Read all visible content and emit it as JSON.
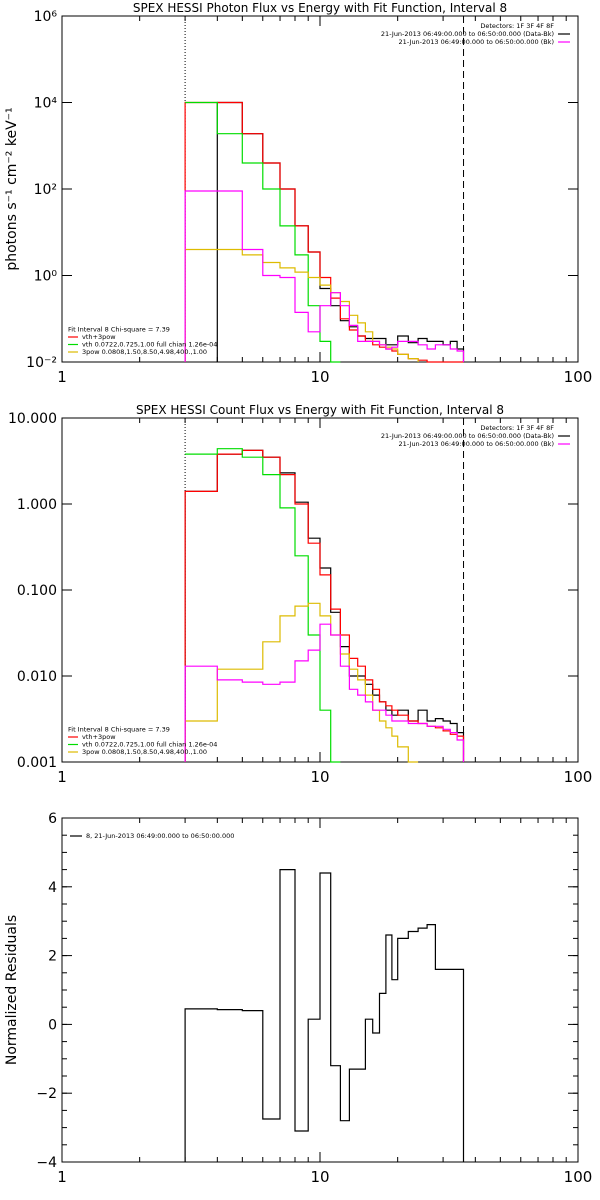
{
  "figure_title_note": "",
  "chart_data": [
    {
      "type": "line",
      "title": "SPEX HESSI Photon Flux vs Energy with Fit Function, Interval 8",
      "ylabel": "photons s⁻¹ cm⁻² keV⁻¹",
      "xlabel": "",
      "xscale": "log",
      "yscale": "log",
      "xlim": [
        1,
        100
      ],
      "ylim": [
        0.01,
        1000000
      ],
      "xticks": [
        {
          "v": 1,
          "label": "1"
        },
        {
          "v": 10,
          "label": "10"
        },
        {
          "v": 100,
          "label": "100"
        }
      ],
      "yticks": [
        {
          "v": 0.01,
          "label": "10⁻²"
        },
        {
          "v": 1,
          "label": "10⁰"
        },
        {
          "v": 100,
          "label": "10²"
        },
        {
          "v": 10000,
          "label": "10⁴"
        },
        {
          "v": 1000000,
          "label": "10⁶"
        }
      ],
      "vlines": [
        {
          "x": 3.0,
          "style": "dotted"
        },
        {
          "x": 36.0,
          "style": "dashed"
        }
      ],
      "legend_top_right": [
        {
          "text": "Detectors: 1F 3F 4F 8F",
          "color": ""
        },
        {
          "text": "21-Jun-2013 06:49:00.000 to 06:50:00.000 (Data-Bk)",
          "color": "#000000"
        },
        {
          "text": "21-Jun-2013 06:49:00.000 to 06:50:00.000 (Bk)",
          "color": "#ff00ff"
        }
      ],
      "legend_bottom_left": [
        {
          "text": "Fit Interval 8   Chi-square = 7.39",
          "color": ""
        },
        {
          "text": "vth+3pow",
          "color": "#ff0000"
        },
        {
          "text": "vth 0.0722,0.725,1.00  full chian 1.26e-04",
          "color": "#00dd00"
        },
        {
          "text": "3pow 0.0808,1.50,8.50,4.98,400.,1.00",
          "color": "#ddbb00"
        }
      ],
      "series": [
        {
          "name": "Data-Bk",
          "color": "#000000",
          "edges": [
            4,
            5,
            6,
            7,
            8,
            9,
            10,
            11,
            12,
            13,
            14,
            15,
            16,
            17,
            18,
            19,
            20,
            22,
            24,
            26,
            28,
            30,
            32,
            34,
            36
          ],
          "values": [
            10000,
            1900,
            400,
            100,
            14,
            3.5,
            0.5,
            0.2,
            0.09,
            0.065,
            0.04,
            0.035,
            0.035,
            0.035,
            0.025,
            0.025,
            0.04,
            0.028,
            0.035,
            0.03,
            0.03,
            0.025,
            0.03,
            0.02
          ]
        },
        {
          "name": "vth+3pow",
          "color": "#ff0000",
          "edges": [
            3,
            4,
            5,
            6,
            7,
            8,
            9,
            10,
            11,
            12,
            13,
            14,
            15,
            16,
            17,
            18,
            19,
            20,
            22,
            24,
            26,
            28,
            30,
            32,
            34,
            36
          ],
          "values": [
            10000,
            10000,
            1900,
            400,
            100,
            14,
            3.5,
            0.9,
            0.3,
            0.1,
            0.055,
            0.04,
            0.03,
            0.025,
            0.022,
            0.02,
            0.018,
            0.015,
            0.012,
            0.011,
            0.01,
            0.01,
            0.01,
            0.01,
            0.01
          ]
        },
        {
          "name": "vth",
          "color": "#00dd00",
          "edges": [
            3,
            4,
            5,
            6,
            7,
            8,
            9,
            10,
            11,
            12
          ],
          "values": [
            10000,
            10000,
            1900,
            400,
            100,
            14,
            3,
            0.2,
            0.03,
            0.01
          ]
        },
        {
          "name": "3pow",
          "color": "#ddbb00",
          "edges": [
            3,
            4,
            5,
            6,
            7,
            8,
            9,
            10,
            11,
            12,
            13,
            14,
            15,
            16,
            17,
            18,
            19,
            20,
            22,
            24
          ],
          "values": [
            4,
            4,
            3,
            2,
            1.5,
            1.2,
            0.9,
            0.6,
            0.4,
            0.25,
            0.12,
            0.08,
            0.05,
            0.03,
            0.025,
            0.022,
            0.02,
            0.015,
            0.012
          ]
        },
        {
          "name": "Bk",
          "color": "#ff00ff",
          "edges": [
            3,
            4,
            5,
            6,
            7,
            8,
            9,
            10,
            11,
            12,
            13,
            14,
            15,
            16,
            17,
            18,
            19,
            20,
            22,
            24,
            26,
            28,
            30,
            32,
            34,
            36
          ],
          "values": [
            90,
            90,
            4,
            1,
            0.9,
            0.14,
            0.05,
            0.2,
            0.4,
            0.2,
            0.07,
            0.03,
            0.03,
            0.03,
            0.025,
            0.02,
            0.022,
            0.03,
            0.03,
            0.025,
            0.02,
            0.025,
            0.025,
            0.02,
            0.018
          ]
        }
      ]
    },
    {
      "type": "line",
      "title": "SPEX HESSI Count Flux vs Energy with Fit Function, Interval 8",
      "ylabel": "",
      "xlabel": "",
      "xscale": "log",
      "yscale": "log",
      "xlim": [
        1,
        100
      ],
      "ylim": [
        0.001,
        10
      ],
      "xticks": [
        {
          "v": 1,
          "label": "1"
        },
        {
          "v": 10,
          "label": "10"
        },
        {
          "v": 100,
          "label": "100"
        }
      ],
      "yticks": [
        {
          "v": 0.001,
          "label": "0.001"
        },
        {
          "v": 0.01,
          "label": "0.010"
        },
        {
          "v": 0.1,
          "label": "0.100"
        },
        {
          "v": 1,
          "label": "1.000"
        },
        {
          "v": 10,
          "label": "10.000"
        }
      ],
      "vlines": [
        {
          "x": 3.0,
          "style": "dotted"
        },
        {
          "x": 36.0,
          "style": "dashed"
        }
      ],
      "legend_top_right": [
        {
          "text": "Detectors: 1F 3F 4F 8F",
          "color": ""
        },
        {
          "text": "21-Jun-2013 06:49:00.000 to 06:50:00.000 (Data-Bk)",
          "color": "#000000"
        },
        {
          "text": "21-Jun-2013 06:49:00.000 to 06:50:00.000 (Bk)",
          "color": "#ff00ff"
        }
      ],
      "legend_bottom_left": [
        {
          "text": "Fit Interval 8   Chi-square = 7.39",
          "color": ""
        },
        {
          "text": "vth+3pow",
          "color": "#ff0000"
        },
        {
          "text": "vth 0.0722,0.725,1.00  full chian 1.26e-04",
          "color": "#00dd00"
        },
        {
          "text": "3pow 0.0808,1.50,8.50,4.98,400.,1.00",
          "color": "#ddbb00"
        }
      ],
      "series": [
        {
          "name": "Data-Bk",
          "color": "#000000",
          "edges": [
            3,
            4,
            5,
            6,
            7,
            8,
            9,
            10,
            11,
            12,
            13,
            14,
            15,
            16,
            17,
            18,
            19,
            20,
            22,
            24,
            26,
            28,
            30,
            32,
            34,
            36
          ],
          "values": [
            1.4,
            3.8,
            4.2,
            3.5,
            2.3,
            1.05,
            0.4,
            0.18,
            0.055,
            0.022,
            0.01,
            0.01,
            0.008,
            0.006,
            0.005,
            0.004,
            0.0035,
            0.004,
            0.003,
            0.004,
            0.003,
            0.0032,
            0.003,
            0.0028,
            0.0022
          ]
        },
        {
          "name": "vth+3pow",
          "color": "#ff0000",
          "edges": [
            3,
            4,
            5,
            6,
            7,
            8,
            9,
            10,
            11,
            12,
            13,
            14,
            15,
            16,
            17,
            18,
            19,
            20,
            22,
            24,
            26,
            28,
            30,
            32,
            34,
            36
          ],
          "values": [
            1.4,
            3.8,
            4.2,
            3.5,
            2.2,
            1.0,
            0.35,
            0.15,
            0.06,
            0.03,
            0.016,
            0.013,
            0.009,
            0.007,
            0.005,
            0.0045,
            0.004,
            0.0035,
            0.003,
            0.0028,
            0.0026,
            0.0025,
            0.0023,
            0.0021,
            0.002
          ]
        },
        {
          "name": "vth",
          "color": "#00dd00",
          "edges": [
            3,
            4,
            5,
            6,
            7,
            8,
            9,
            10,
            11,
            12
          ],
          "values": [
            1.4,
            3.8,
            4.4,
            3.5,
            2.2,
            0.9,
            0.25,
            0.03,
            0.004,
            0.001
          ]
        },
        {
          "name": "3pow",
          "color": "#ddbb00",
          "edges": [
            3,
            4,
            5,
            6,
            7,
            8,
            9,
            10,
            11,
            12,
            13,
            14,
            15,
            16,
            17,
            18,
            19,
            20,
            22,
            24
          ],
          "values": [
            0.003,
            0.012,
            0.012,
            0.025,
            0.05,
            0.065,
            0.07,
            0.05,
            0.03,
            0.018,
            0.012,
            0.009,
            0.006,
            0.004,
            0.003,
            0.0025,
            0.002,
            0.0015,
            0.001
          ]
        },
        {
          "name": "Bk",
          "color": "#ff00ff",
          "edges": [
            3,
            4,
            5,
            6,
            7,
            8,
            9,
            10,
            11,
            12,
            13,
            14,
            15,
            16,
            17,
            18,
            19,
            20,
            22,
            24,
            26,
            28,
            30,
            32,
            34,
            36
          ],
          "values": [
            0.013,
            0.009,
            0.0085,
            0.008,
            0.0085,
            0.015,
            0.02,
            0.04,
            0.03,
            0.013,
            0.007,
            0.006,
            0.005,
            0.004,
            0.004,
            0.0035,
            0.003,
            0.003,
            0.0028,
            0.0028,
            0.0026,
            0.0026,
            0.0024,
            0.0022,
            0.0018
          ]
        }
      ]
    },
    {
      "type": "line",
      "title": "",
      "ylabel": "Normalized Residuals",
      "xlabel": "",
      "xscale": "log",
      "yscale": "linear",
      "xlim": [
        1,
        100
      ],
      "ylim": [
        -4,
        6
      ],
      "xticks": [
        {
          "v": 1,
          "label": "1"
        },
        {
          "v": 10,
          "label": "10"
        },
        {
          "v": 100,
          "label": "100"
        }
      ],
      "yticks": [
        {
          "v": -4,
          "label": "−4"
        },
        {
          "v": -2,
          "label": "−2"
        },
        {
          "v": 0,
          "label": "0"
        },
        {
          "v": 2,
          "label": "2"
        },
        {
          "v": 4,
          "label": "4"
        },
        {
          "v": 6,
          "label": "6"
        }
      ],
      "vlines": [],
      "legend_top_left": [
        {
          "text": "8, 21-Jun-2013 06:49:00.000 to 06:50:00.000",
          "color": "#000000"
        }
      ],
      "series": [
        {
          "name": "8, 21-Jun-2013 06:49:00.000 to 06:50:00.000",
          "color": "#000000",
          "edges": [
            3,
            4,
            5,
            6,
            7,
            8,
            9,
            10,
            11,
            12,
            13,
            14,
            15,
            16,
            17,
            18,
            19,
            20,
            22,
            24,
            26,
            28,
            30,
            32,
            34,
            36
          ],
          "values": [
            0.45,
            0.43,
            0.4,
            -2.75,
            4.5,
            -3.1,
            0.15,
            4.4,
            -1.2,
            -2.8,
            -1.3,
            -1.3,
            0.15,
            -0.25,
            0.9,
            2.6,
            1.3,
            2.5,
            2.7,
            2.8,
            2.9,
            1.6,
            1.6,
            1.6,
            1.6
          ]
        }
      ]
    }
  ]
}
